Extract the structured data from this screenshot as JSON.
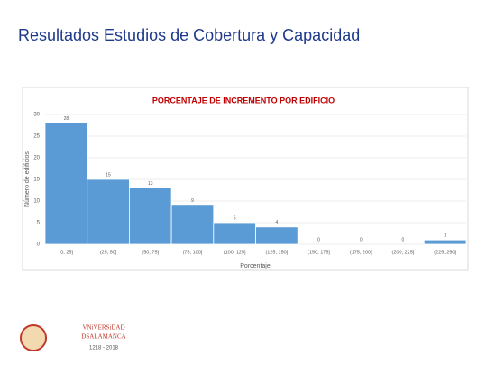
{
  "slide_title": "Resultados Estudios de Cobertura y Capacidad",
  "chart_data": {
    "type": "bar",
    "title": "PORCENTAJE DE INCREMENTO POR EDIFICIO",
    "x_label": "Porcentaje",
    "y_label": "Número de edificios",
    "categories": [
      "[0, 25]",
      "(25, 50]",
      "(50, 75]",
      "(75, 100]",
      "(100, 125]",
      "(125, 150]",
      "(150, 175]",
      "(175, 200]",
      "(200, 225]",
      "(225, 250]"
    ],
    "values": [
      28,
      15,
      13,
      9,
      5,
      4,
      0,
      0,
      0,
      1
    ],
    "color": "#5b9bd5",
    "ylim": [
      0,
      30
    ],
    "yticks": [
      0,
      5,
      10,
      15,
      20,
      25,
      30
    ],
    "grid": true
  },
  "logo": {
    "name": "VNiVERSiDAD",
    "city": "DSALAMANCA",
    "years": "1218 - 2018"
  }
}
